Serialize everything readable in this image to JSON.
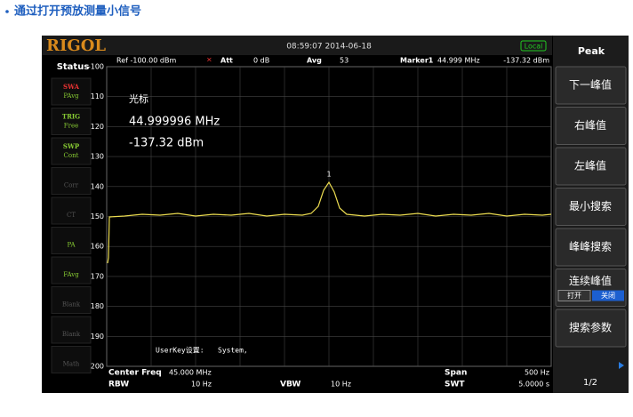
{
  "heading": "通过打开预放测量小信号",
  "header": {
    "brand": "RIGOL",
    "datetime": "08:59:07 2014-06-18",
    "local": "Local",
    "menu_title": "Peak"
  },
  "status": {
    "title": "Status",
    "items": [
      [
        "SWA",
        "PAvg"
      ],
      [
        "TRIG",
        "Free"
      ],
      [
        "SWP",
        "Cont"
      ],
      [
        "Corr"
      ],
      [
        "CT"
      ],
      [
        "PA"
      ],
      [
        "FAvg"
      ],
      [
        "Blank"
      ],
      [
        "Blank"
      ],
      [
        "Math"
      ]
    ]
  },
  "info_bar": {
    "ref": "Ref -100.00 dBm",
    "att_label": "Att",
    "att": "0 dB",
    "avg_label": "Avg",
    "avg": "53",
    "marker_label": "Marker1",
    "marker_freq": "44.999 MHz",
    "marker_amp": "-137.32 dBm"
  },
  "y_ticks": [
    "-100",
    "-110",
    "-120",
    "-130",
    "-140",
    "-150",
    "-160",
    "-170",
    "-180",
    "-190",
    "-200"
  ],
  "marker_box": {
    "label": "光标",
    "freq": "44.999996 MHz",
    "amp": "-137.32 dBm",
    "id": "1"
  },
  "userkey": {
    "label": "UserKey设置:",
    "value": "System,"
  },
  "footer": {
    "center_label": "Center Freq",
    "center": "45.000 MHz",
    "span_label": "Span",
    "span": "500 Hz",
    "rbw_label": "RBW",
    "rbw": "10 Hz",
    "vbw_label": "VBW",
    "vbw": "10 Hz",
    "swt_label": "SWT",
    "swt": "5.0000 s"
  },
  "menu": {
    "items": [
      "下一峰值",
      "右峰值",
      "左峰值",
      "最小搜索",
      "峰峰搜索",
      "连续峰值",
      "搜索参数"
    ],
    "on": "打开",
    "off": "关闭",
    "page": "1/2"
  }
}
